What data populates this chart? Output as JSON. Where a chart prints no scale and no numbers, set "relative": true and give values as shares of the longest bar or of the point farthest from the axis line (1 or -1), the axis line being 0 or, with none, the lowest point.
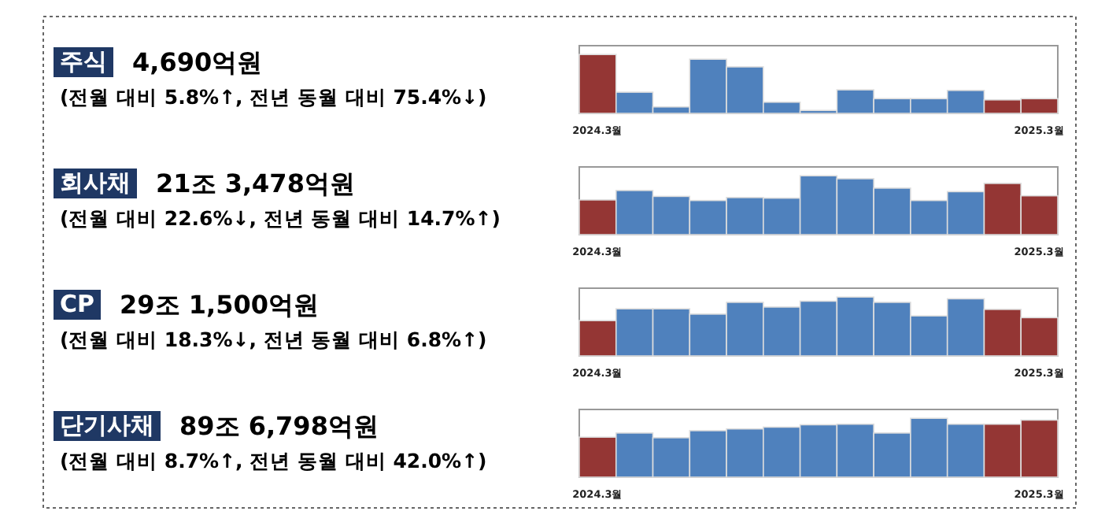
{
  "chart_data": [
    {
      "type": "other",
      "title": "주식",
      "subtitle": "4,690억원",
      "annotations": [
        "(전월 대비 5.8%↑, 전년 동월 대비 75.4%↓)"
      ]
    },
    {
      "type": "bar",
      "relative": true,
      "categories": [
        "2024.3월",
        null,
        null,
        null,
        null,
        null,
        null,
        null,
        null,
        null,
        null,
        null,
        "2025.3월"
      ],
      "colors": [
        "#943634",
        "#4f81bd",
        "#4f81bd",
        "#4f81bd",
        "#4f81bd",
        "#4f81bd",
        "#4f81bd",
        "#4f81bd",
        "#4f81bd",
        "#4f81bd",
        "#4f81bd",
        "#943634",
        "#943634"
      ],
      "values": [
        1,
        0.36,
        0.11,
        0.92,
        0.79,
        0.19,
        0.05,
        0.4,
        0.25,
        0.25,
        0.39,
        0.23,
        0.25
      ]
    },
    {
      "type": "other",
      "title": "회사채",
      "subtitle": "21조 3,478억원",
      "annotations": [
        "(전월 대비 22.6%↓, 전년 동월 대비 14.7%↑)"
      ]
    },
    {
      "type": "bar",
      "relative": true,
      "categories": [
        "2024.3월",
        null,
        null,
        null,
        null,
        null,
        null,
        null,
        null,
        null,
        null,
        null,
        "2025.3월"
      ],
      "colors": [
        "#943634",
        "#4f81bd",
        "#4f81bd",
        "#4f81bd",
        "#4f81bd",
        "#4f81bd",
        "#4f81bd",
        "#4f81bd",
        "#4f81bd",
        "#4f81bd",
        "#4f81bd",
        "#943634",
        "#943634"
      ],
      "values": [
        0.59,
        0.75,
        0.65,
        0.58,
        0.63,
        0.62,
        1,
        0.95,
        0.79,
        0.58,
        0.73,
        0.87,
        0.66
      ]
    },
    {
      "type": "other",
      "title": "CP",
      "subtitle": "29조 1,500억원",
      "annotations": [
        "(전월 대비 18.3%↓, 전년 동월 대비 6.8%↑)"
      ]
    },
    {
      "type": "bar",
      "relative": true,
      "categories": [
        "2024.3월",
        null,
        null,
        null,
        null,
        null,
        null,
        null,
        null,
        null,
        null,
        null,
        "2025.3월"
      ],
      "colors": [
        "#943634",
        "#4f81bd",
        "#4f81bd",
        "#4f81bd",
        "#4f81bd",
        "#4f81bd",
        "#4f81bd",
        "#4f81bd",
        "#4f81bd",
        "#4f81bd",
        "#4f81bd",
        "#943634",
        "#943634"
      ],
      "values": [
        0.6,
        0.8,
        0.8,
        0.71,
        0.91,
        0.83,
        0.93,
        1,
        0.91,
        0.68,
        0.97,
        0.79,
        0.65
      ]
    },
    {
      "type": "other",
      "title": "단기사채",
      "subtitle": "89조 6,798억원",
      "annotations": [
        "(전월 대비 8.7%↑, 전년 동월 대비 42.0%↑)"
      ]
    },
    {
      "type": "bar",
      "relative": true,
      "categories": [
        "2024.3월",
        null,
        null,
        null,
        null,
        null,
        null,
        null,
        null,
        null,
        null,
        null,
        "2025.3월"
      ],
      "colors": [
        "#943634",
        "#4f81bd",
        "#4f81bd",
        "#4f81bd",
        "#4f81bd",
        "#4f81bd",
        "#4f81bd",
        "#4f81bd",
        "#4f81bd",
        "#4f81bd",
        "#4f81bd",
        "#943634",
        "#943634"
      ],
      "values": [
        0.68,
        0.75,
        0.67,
        0.79,
        0.82,
        0.85,
        0.89,
        0.9,
        0.75,
        1,
        0.9,
        0.9,
        0.97
      ]
    }
  ]
}
